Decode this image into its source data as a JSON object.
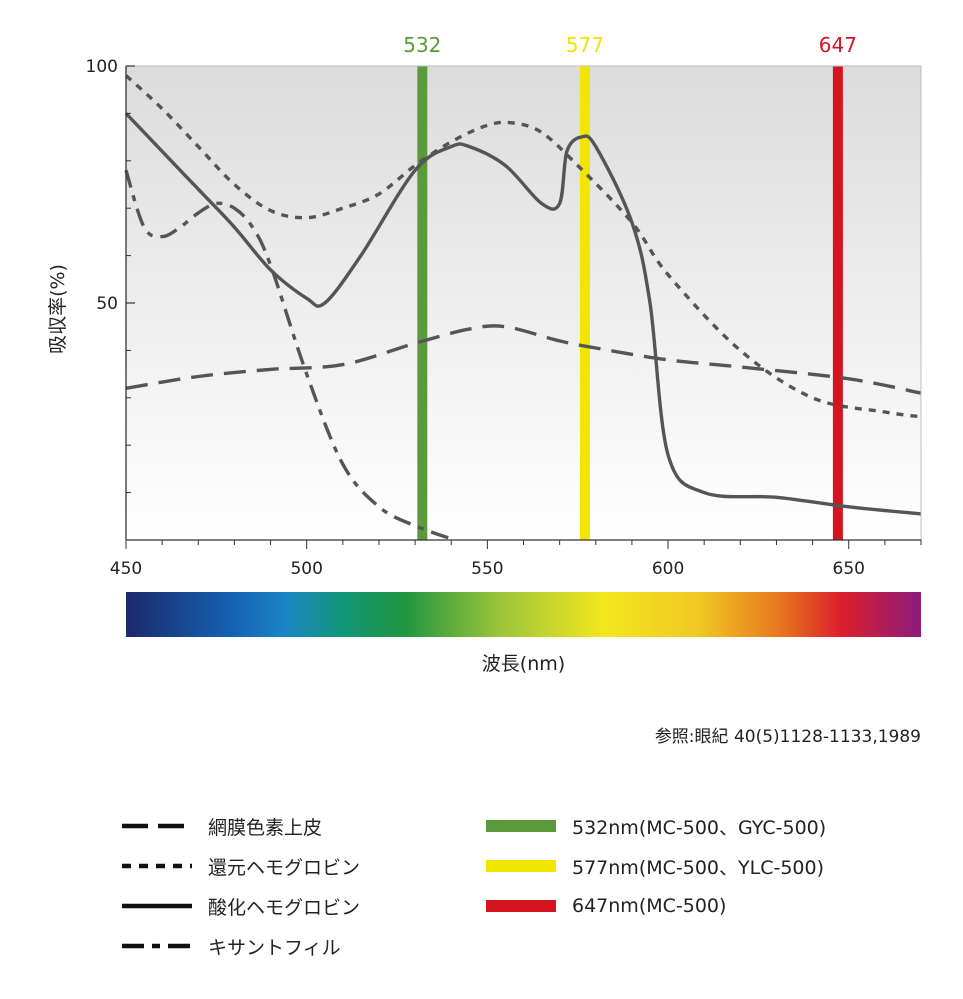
{
  "chart_data": {
    "type": "line",
    "xlabel": "波長(nm)",
    "ylabel": "吸収率(%)",
    "xlim": [
      450,
      670
    ],
    "ylim": [
      0,
      100
    ],
    "x_ticks": [
      450,
      500,
      550,
      600,
      650
    ],
    "y_ticks": [
      {
        "value": 50,
        "label": "50"
      },
      {
        "value": 100,
        "label": "100"
      }
    ],
    "y_minor_ticks": [
      10,
      20,
      30,
      40,
      60,
      70,
      80,
      90
    ],
    "background": "gradient-grey",
    "spectrum_bar": true,
    "series": [
      {
        "name": "網膜色素上皮",
        "style": "long-dash",
        "x": [
          450,
          470,
          490,
          510,
          530,
          545,
          555,
          570,
          580,
          600,
          620,
          650,
          670
        ],
        "y": [
          32,
          34.5,
          36,
          37,
          41.5,
          44.5,
          45,
          42,
          40.5,
          38,
          36.5,
          34,
          31
        ]
      },
      {
        "name": "還元ヘモグロビン",
        "style": "short-dash",
        "x": [
          450,
          460,
          470,
          480,
          490,
          500,
          510,
          520,
          530,
          540,
          550,
          557,
          565,
          575,
          590,
          600,
          620,
          640,
          660,
          670
        ],
        "y": [
          98,
          91,
          83,
          75,
          69.5,
          68,
          70,
          73,
          79,
          84,
          87.5,
          88,
          86,
          79,
          67,
          56,
          40,
          30,
          27,
          26
        ]
      },
      {
        "name": "酸化ヘモグロビン",
        "style": "solid",
        "x": [
          450,
          460,
          470,
          480,
          490,
          500,
          505,
          515,
          530,
          540,
          545,
          555,
          565,
          570,
          572,
          576,
          580,
          590,
          595,
          600,
          610,
          630,
          650,
          670
        ],
        "y": [
          90,
          82,
          74,
          66,
          57,
          51,
          50,
          60,
          78,
          83,
          83,
          79,
          71,
          71,
          82,
          85,
          83,
          67,
          50,
          18,
          10,
          9,
          7,
          5.5
        ]
      },
      {
        "name": "キサントフィル",
        "style": "dash-dot",
        "x": [
          450,
          455,
          460,
          465,
          470,
          475,
          480,
          485,
          490,
          500,
          510,
          520,
          530,
          541
        ],
        "y": [
          78,
          66,
          64,
          66,
          69,
          71,
          70,
          66,
          58,
          35,
          16,
          7,
          3,
          0
        ]
      }
    ],
    "markers": [
      {
        "value": 532,
        "label": "532",
        "color": "#5a9a3a"
      },
      {
        "value": 577,
        "label": "577",
        "color": "#f2e600"
      },
      {
        "value": 647,
        "label": "647",
        "color": "#d4141e"
      }
    ]
  },
  "source": "参照:眼紀 40(5)1128-1133,1989",
  "legend": {
    "lines": [
      {
        "label": "網膜色素上皮",
        "style": "long-dash"
      },
      {
        "label": "還元ヘモグロビン",
        "style": "short-dash"
      },
      {
        "label": "酸化ヘモグロビン",
        "style": "solid"
      },
      {
        "label": "キサントフィル",
        "style": "dash-dot"
      }
    ],
    "lasers": [
      {
        "label": "532nm(MC-500、GYC-500)",
        "color": "#5a9a3a"
      },
      {
        "label": "577nm(MC-500、YLC-500)",
        "color": "#f2e600"
      },
      {
        "label": "647nm(MC-500)",
        "color": "#d4141e"
      }
    ]
  }
}
